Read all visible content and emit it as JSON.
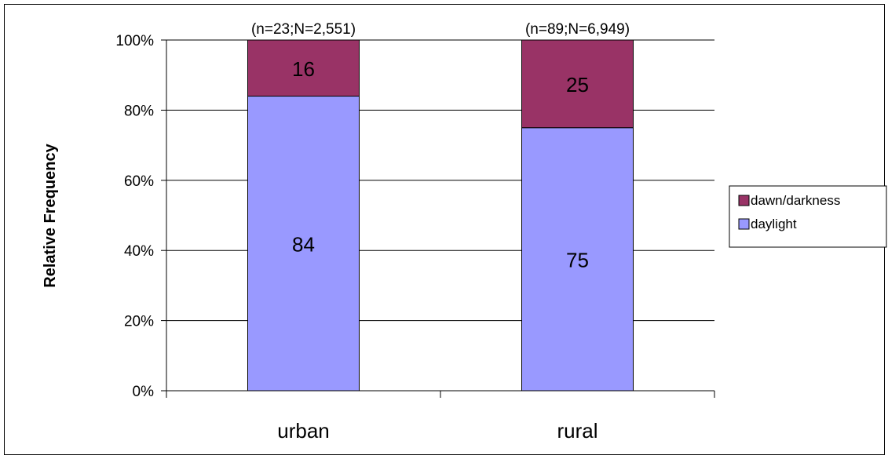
{
  "chart_data": {
    "type": "bar",
    "stacked": true,
    "categories": [
      "urban",
      "rural"
    ],
    "category_annotations": [
      "(n=23;N=2,551)",
      "(n=89;N=6,949)"
    ],
    "series": [
      {
        "name": "daylight",
        "values": [
          84,
          75
        ],
        "color": "#9999ff"
      },
      {
        "name": "dawn/darkness",
        "values": [
          16,
          25
        ],
        "color": "#993366"
      }
    ],
    "ylabel": "Relative Frequency",
    "xlabel": "",
    "ylim": [
      0,
      100
    ],
    "yticks": [
      0,
      20,
      40,
      60,
      80,
      100
    ],
    "ytick_labels": [
      "0%",
      "20%",
      "40%",
      "60%",
      "80%",
      "100%"
    ],
    "grid": true,
    "legend_position": "right"
  }
}
